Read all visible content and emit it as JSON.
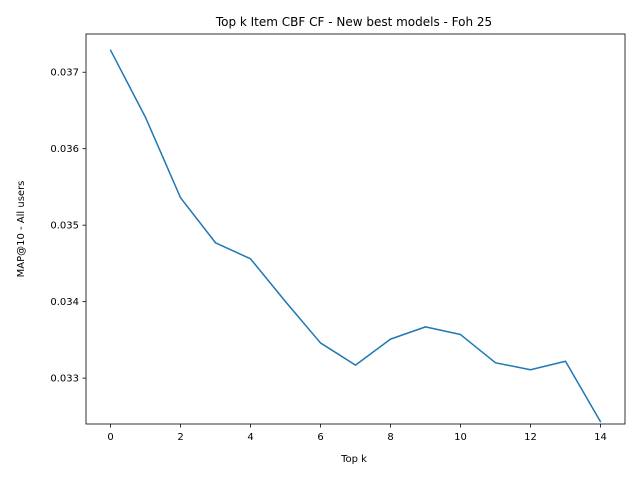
{
  "chart_data": {
    "type": "line",
    "title": "Top k Item CBF CF - New best models - Foh 25",
    "xlabel": "Top k",
    "ylabel": "MAP@10 - All users",
    "xlim": [
      -0.7,
      14.7
    ],
    "ylim": [
      0.0324,
      0.0375
    ],
    "xticks": [
      0,
      2,
      4,
      6,
      8,
      10,
      12,
      14
    ],
    "xtick_labels": [
      "0",
      "2",
      "4",
      "6",
      "8",
      "10",
      "12",
      "14"
    ],
    "yticks": [
      0.033,
      0.034,
      0.035,
      0.036,
      0.037
    ],
    "ytick_labels": [
      "0.033",
      "0.034",
      "0.035",
      "0.036",
      "0.037"
    ],
    "grid": false,
    "series": [
      {
        "color": "#1f77b4",
        "x": [
          0,
          1,
          2,
          3,
          4,
          5,
          6,
          7,
          8,
          9,
          10,
          11,
          12,
          13,
          14
        ],
        "values": [
          0.03729,
          0.03641,
          0.03536,
          0.03477,
          0.03456,
          0.034,
          0.03346,
          0.03317,
          0.03351,
          0.03367,
          0.03357,
          0.0332,
          0.03311,
          0.03322,
          0.03243
        ]
      }
    ]
  }
}
